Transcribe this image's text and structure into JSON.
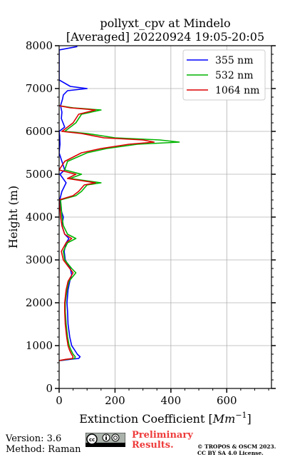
{
  "chart_data": {
    "type": "line",
    "title": "pollyxt_cpv at Mindelo",
    "subtitle": "[Averaged] 20220924 19:05-20:05",
    "xlabel": "Extinction Coefficient [",
    "xlabel_unit": "Mm",
    "xlabel_exp": "−1",
    "xlabel_end": "]",
    "ylabel": "Height (m)",
    "xlim": [
      0,
      760
    ],
    "ylim": [
      0,
      8000
    ],
    "xticks": [
      0,
      200,
      400,
      600
    ],
    "yticks": [
      0,
      1000,
      2000,
      3000,
      4000,
      5000,
      6000,
      7000,
      8000
    ],
    "grid": true,
    "legend_position": "top-right",
    "series": [
      {
        "name": "355 nm",
        "color": "#0000ff",
        "points": [
          [
            5,
            650
          ],
          [
            40,
            680
          ],
          [
            70,
            700
          ],
          [
            75,
            740
          ],
          [
            65,
            800
          ],
          [
            55,
            900
          ],
          [
            45,
            1000
          ],
          [
            38,
            1200
          ],
          [
            32,
            1500
          ],
          [
            30,
            1800
          ],
          [
            28,
            2000
          ],
          [
            32,
            2300
          ],
          [
            38,
            2500
          ],
          [
            45,
            2650
          ],
          [
            40,
            2800
          ],
          [
            22,
            3000
          ],
          [
            18,
            3200
          ],
          [
            25,
            3400
          ],
          [
            35,
            3500
          ],
          [
            20,
            3600
          ],
          [
            10,
            3800
          ],
          [
            15,
            4000
          ],
          [
            5,
            4200
          ],
          [
            2,
            4400
          ],
          [
            10,
            4600
          ],
          [
            25,
            4800
          ],
          [
            3,
            5000
          ],
          [
            20,
            5100
          ],
          [
            10,
            5300
          ],
          [
            0,
            5500
          ],
          [
            3,
            5700
          ],
          [
            2,
            5900
          ],
          [
            0,
            6000
          ],
          [
            20,
            6100
          ],
          [
            8,
            6300
          ],
          [
            10,
            6450
          ],
          [
            5,
            6600
          ],
          [
            12,
            6750
          ],
          [
            15,
            6850
          ],
          [
            30,
            6950
          ],
          [
            100,
            7000
          ],
          [
            40,
            7050
          ],
          [
            0,
            7200
          ],
          [
            0,
            7500
          ],
          [
            0,
            7900
          ],
          [
            65,
            7980
          ]
        ]
      },
      {
        "name": "532 nm",
        "color": "#00b400",
        "points": [
          [
            0,
            650
          ],
          [
            30,
            680
          ],
          [
            55,
            700
          ],
          [
            58,
            740
          ],
          [
            50,
            800
          ],
          [
            42,
            900
          ],
          [
            36,
            1000
          ],
          [
            30,
            1200
          ],
          [
            25,
            1500
          ],
          [
            22,
            1800
          ],
          [
            22,
            2000
          ],
          [
            28,
            2300
          ],
          [
            35,
            2500
          ],
          [
            60,
            2700
          ],
          [
            45,
            2800
          ],
          [
            20,
            3000
          ],
          [
            15,
            3200
          ],
          [
            30,
            3400
          ],
          [
            60,
            3500
          ],
          [
            30,
            3600
          ],
          [
            15,
            3800
          ],
          [
            10,
            4000
          ],
          [
            8,
            4200
          ],
          [
            5,
            4400
          ],
          [
            60,
            4500
          ],
          [
            80,
            4600
          ],
          [
            100,
            4750
          ],
          [
            150,
            4800
          ],
          [
            40,
            4900
          ],
          [
            80,
            5000
          ],
          [
            20,
            5100
          ],
          [
            30,
            5300
          ],
          [
            100,
            5500
          ],
          [
            170,
            5600
          ],
          [
            280,
            5700
          ],
          [
            430,
            5750
          ],
          [
            360,
            5800
          ],
          [
            200,
            5850
          ],
          [
            100,
            5950
          ],
          [
            20,
            6000
          ],
          [
            40,
            6100
          ],
          [
            60,
            6200
          ],
          [
            80,
            6400
          ],
          [
            150,
            6500
          ],
          [
            50,
            6550
          ],
          [
            0,
            6600
          ]
        ]
      },
      {
        "name": "1064 nm",
        "color": "#dd0000",
        "points": [
          [
            0,
            650
          ],
          [
            25,
            680
          ],
          [
            48,
            700
          ],
          [
            50,
            740
          ],
          [
            44,
            800
          ],
          [
            37,
            900
          ],
          [
            32,
            1000
          ],
          [
            27,
            1200
          ],
          [
            22,
            1500
          ],
          [
            20,
            1800
          ],
          [
            20,
            2000
          ],
          [
            25,
            2300
          ],
          [
            32,
            2500
          ],
          [
            50,
            2700
          ],
          [
            38,
            2800
          ],
          [
            15,
            3000
          ],
          [
            8,
            3200
          ],
          [
            25,
            3400
          ],
          [
            45,
            3500
          ],
          [
            20,
            3600
          ],
          [
            10,
            3800
          ],
          [
            5,
            4000
          ],
          [
            3,
            4200
          ],
          [
            0,
            4400
          ],
          [
            50,
            4500
          ],
          [
            70,
            4600
          ],
          [
            90,
            4750
          ],
          [
            130,
            4800
          ],
          [
            30,
            4900
          ],
          [
            60,
            5000
          ],
          [
            0,
            5100
          ],
          [
            20,
            5300
          ],
          [
            80,
            5500
          ],
          [
            150,
            5600
          ],
          [
            250,
            5700
          ],
          [
            340,
            5750
          ],
          [
            300,
            5800
          ],
          [
            160,
            5850
          ],
          [
            80,
            5950
          ],
          [
            10,
            6000
          ],
          [
            30,
            6100
          ],
          [
            50,
            6200
          ],
          [
            70,
            6400
          ],
          [
            130,
            6500
          ],
          [
            40,
            6550
          ],
          [
            0,
            6600
          ]
        ]
      }
    ]
  },
  "footer": {
    "version": "Version: 3.6",
    "method": "Method: Raman",
    "prelim_line1": "Preliminary",
    "prelim_line2": "Results.",
    "copyright_line1": "© TROPOS & OSCM 2023.",
    "copyright_line2": "CC BY SA 4.0 License.",
    "cc_logo_icon": "cc-by-sa-icon"
  }
}
